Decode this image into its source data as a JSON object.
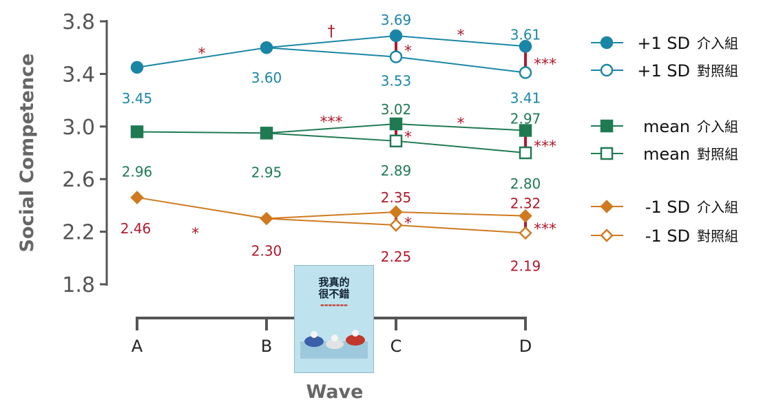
{
  "chart_data": {
    "type": "line",
    "ylabel": "Social Competence",
    "xlabel": "Wave",
    "categories": [
      "A",
      "B",
      "C",
      "D"
    ],
    "ylim": [
      1.8,
      3.8
    ],
    "yticks": [
      "1.8",
      "2.2",
      "2.6",
      "3.0",
      "3.4",
      "3.8"
    ],
    "legend_position": "right",
    "series": [
      {
        "name": "+1 SD 介入組",
        "values": [
          3.45,
          3.6,
          3.69,
          3.61
        ],
        "labels": [
          "3.45",
          "3.60",
          "3.69",
          "3.61"
        ],
        "color": "#1a86a6",
        "marker": "circle",
        "filled": true
      },
      {
        "name": "+1 SD 對照組",
        "values": [
          null,
          null,
          3.53,
          3.41
        ],
        "labels": [
          null,
          null,
          "3.53",
          "3.41"
        ],
        "color": "#1a86a6",
        "marker": "circle",
        "filled": false
      },
      {
        "name": "mean 介入組",
        "values": [
          2.96,
          2.95,
          3.02,
          2.97
        ],
        "labels": [
          "2.96",
          "2.95",
          "3.02",
          "2.97"
        ],
        "color": "#1f7a52",
        "marker": "square",
        "filled": true
      },
      {
        "name": "mean 對照組",
        "values": [
          null,
          null,
          2.89,
          2.8
        ],
        "labels": [
          null,
          null,
          "2.89",
          "2.80"
        ],
        "color": "#1f7a52",
        "marker": "square",
        "filled": false
      },
      {
        "name": "-1 SD 介入組",
        "values": [
          2.46,
          2.3,
          2.35,
          2.32
        ],
        "labels": [
          "2.46",
          "2.30",
          "2.35",
          "2.32"
        ],
        "color": "#cf7a1f",
        "marker": "diamond",
        "filled": true
      },
      {
        "name": "-1 SD 對照組",
        "values": [
          null,
          null,
          2.25,
          2.19
        ],
        "labels": [
          null,
          null,
          "2.25",
          "2.19"
        ],
        "color": "#cf7a1f",
        "marker": "diamond",
        "filled": false
      }
    ],
    "segment_sig": [
      {
        "text": "*",
        "x": 0.5,
        "y": 3.58
      },
      {
        "text": "†",
        "x": 1.5,
        "y": 3.75
      },
      {
        "text": "*",
        "x": 2.5,
        "y": 3.72
      },
      {
        "text": "***",
        "x": 1.5,
        "y": 3.06
      },
      {
        "text": "*",
        "x": 2.5,
        "y": 3.05
      },
      {
        "text": "*",
        "x": 0.45,
        "y": 2.21
      }
    ],
    "group_diff_sig": [
      {
        "x": 2,
        "top": 3.69,
        "bottom": 3.53,
        "text": "*"
      },
      {
        "x": 3,
        "top": 3.61,
        "bottom": 3.41,
        "text": "***"
      },
      {
        "x": 2,
        "top": 3.02,
        "bottom": 2.89,
        "text": "*"
      },
      {
        "x": 3,
        "top": 2.97,
        "bottom": 2.8,
        "text": "***"
      },
      {
        "x": 2,
        "top": 2.35,
        "bottom": 2.25,
        "text": "*"
      },
      {
        "x": 3,
        "top": 2.32,
        "bottom": 2.19,
        "text": "***"
      }
    ],
    "legend": [
      {
        "series": 0,
        "sd": "+1 SD",
        "group": "介入組"
      },
      {
        "series": 1,
        "sd": "+1 SD",
        "group": "對照組"
      },
      {
        "series": 2,
        "sd": "mean",
        "group": "介入組"
      },
      {
        "series": 3,
        "sd": "mean",
        "group": "對照組"
      },
      {
        "series": 4,
        "sd": "-1 SD",
        "group": "介入組"
      },
      {
        "series": 5,
        "sd": "-1 SD",
        "group": "對照組"
      }
    ],
    "sig_color": "#b2182b"
  },
  "book": {
    "title_line1": "我真的",
    "title_line2": "很不錯"
  }
}
